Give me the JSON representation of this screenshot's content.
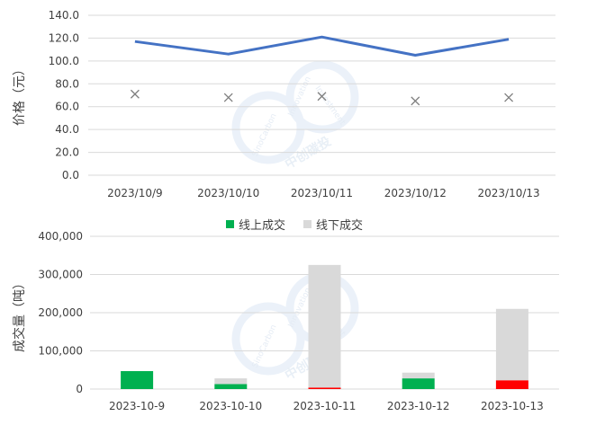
{
  "chart_data": [
    {
      "type": "line",
      "ylabel": "价格（元）",
      "ylim": [
        0,
        140
      ],
      "yticks": [
        "0.0",
        "20.0",
        "40.0",
        "60.0",
        "80.0",
        "100.0",
        "120.0",
        "140.0"
      ],
      "categories": [
        "2023/10/9",
        "2023/10/10",
        "2023/10/11",
        "2023/10/12",
        "2023/10/13"
      ],
      "grid": true,
      "series": [
        {
          "type": "line",
          "color": "#4472C4",
          "values": [
            117,
            106,
            121,
            105,
            119
          ]
        },
        {
          "type": "scatter",
          "marker": "x",
          "color": "#7f7f7f",
          "values": [
            71,
            68,
            69,
            65,
            68
          ]
        }
      ]
    },
    {
      "type": "bar",
      "stacked": true,
      "ylabel": "成交量（吨）",
      "ylim": [
        0,
        400000
      ],
      "yticks": [
        "0",
        "100,000",
        "200,000",
        "300,000",
        "400,000"
      ],
      "categories": [
        "2023-10-9",
        "2023-10-10",
        "2023-10-11",
        "2023-10-12",
        "2023-10-13"
      ],
      "grid": true,
      "legend_position": "top-center",
      "series": [
        {
          "name": "线上成交",
          "color": "#00B050",
          "point_colors": [
            "#00B050",
            "#00B050",
            "#FF0000",
            "#00B050",
            "#FF0000"
          ],
          "values": [
            47000,
            13000,
            4000,
            28000,
            23000
          ]
        },
        {
          "name": "线下成交",
          "color": "#D9D9D9",
          "values": [
            0,
            15000,
            321000,
            15000,
            187000
          ]
        }
      ]
    }
  ],
  "watermark": {
    "brand": "中创碳投",
    "en_1": "SinoCarbon",
    "en_2": "Innovation",
    "en_3": "Investment"
  }
}
